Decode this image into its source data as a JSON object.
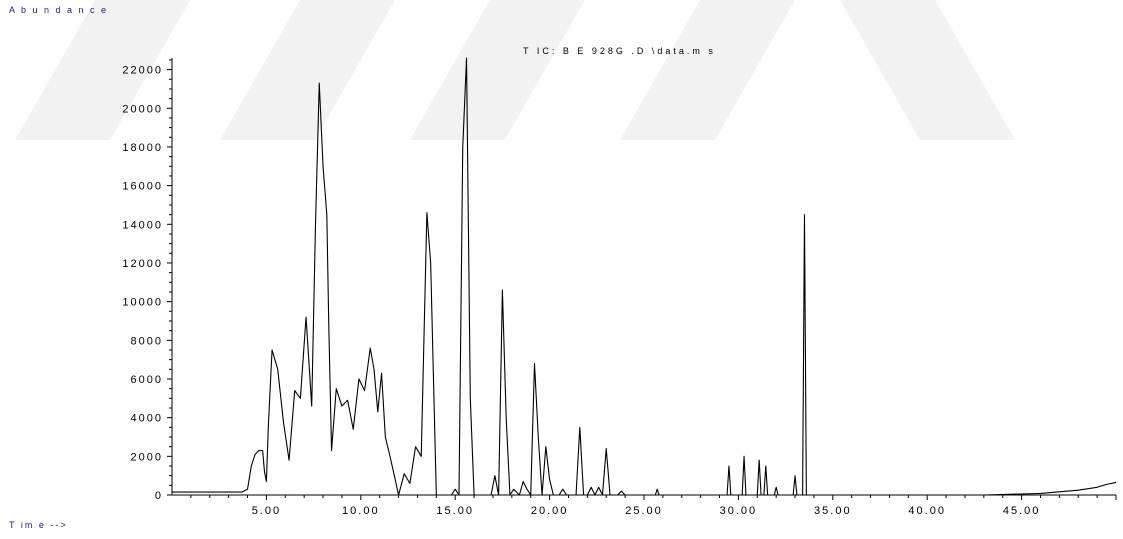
{
  "chart_data": {
    "type": "line",
    "title": "T IC: B E 928G .D \\data.m s",
    "ylabel": "A b u n d a n c e",
    "xlabel": "T im e -->",
    "xlim": [
      0,
      50
    ],
    "ylim": [
      0,
      22600
    ],
    "x_ticks": [
      5,
      10,
      15,
      20,
      25,
      30,
      35,
      40,
      45
    ],
    "x_tick_labels": [
      "5.00",
      "10.00",
      "15.00",
      "20.00",
      "25.00",
      "30.00",
      "35.00",
      "40.00",
      "45.00"
    ],
    "y_ticks": [
      0,
      2000,
      4000,
      6000,
      8000,
      10000,
      12000,
      14000,
      16000,
      18000,
      20000,
      22000
    ],
    "y_tick_labels": [
      "0",
      "2000",
      "4000",
      "6000",
      "8000",
      "10000",
      "12000",
      "14000",
      "16000",
      "18000",
      "20000",
      "22000"
    ],
    "grid": false,
    "line_color": "#000000",
    "series": [
      {
        "x": [
          0.0,
          3.7,
          4.0,
          4.2,
          4.4,
          4.6,
          4.8,
          4.9,
          5.0,
          5.1,
          5.3,
          5.6,
          5.9,
          6.2,
          6.5,
          6.8,
          7.1,
          7.4,
          7.6,
          7.8,
          8.0,
          8.2,
          8.3,
          8.45,
          8.7,
          9.0,
          9.3,
          9.6,
          9.9,
          10.2,
          10.5,
          10.7,
          10.9,
          11.1,
          11.3,
          11.5,
          11.8,
          12.0,
          12.3,
          12.6,
          12.9,
          13.2,
          13.5,
          13.7,
          13.9,
          14.0,
          14.2,
          14.8,
          15.0,
          15.2,
          15.4,
          15.6,
          15.8,
          16.0,
          16.5,
          16.9,
          17.1,
          17.3,
          17.5,
          17.7,
          17.9,
          18.1,
          18.4,
          18.6,
          18.8,
          19.0,
          19.2,
          19.4,
          19.6,
          19.8,
          20.0,
          20.2,
          20.5,
          20.7,
          20.9,
          21.2,
          21.4,
          21.6,
          21.8,
          22.0,
          22.2,
          22.4,
          22.6,
          22.8,
          23.0,
          23.2,
          23.6,
          23.8,
          24.0,
          25.6,
          25.7,
          25.8,
          29.4,
          29.5,
          29.6,
          30.2,
          30.3,
          30.4,
          31.0,
          31.1,
          31.2,
          31.35,
          31.45,
          31.55,
          31.9,
          32.0,
          32.1,
          32.9,
          33.0,
          33.1,
          33.4,
          33.5,
          33.6,
          43.0,
          46.0,
          48.0,
          49.0,
          49.5,
          50.0
        ],
        "y": [
          150,
          150,
          300,
          1500,
          2100,
          2300,
          2300,
          1200,
          700,
          3500,
          7500,
          6500,
          3800,
          1800,
          5400,
          5000,
          9200,
          4600,
          14000,
          21300,
          17000,
          14500,
          9000,
          2300,
          5500,
          4600,
          4900,
          3400,
          6000,
          5400,
          7600,
          6500,
          4300,
          6300,
          3000,
          2200,
          900,
          0,
          1100,
          600,
          2500,
          2000,
          14600,
          12000,
          4000,
          0,
          0,
          0,
          300,
          0,
          18000,
          22600,
          5000,
          0,
          0,
          0,
          1000,
          0,
          10600,
          4000,
          0,
          300,
          0,
          700,
          300,
          0,
          6800,
          3000,
          0,
          2500,
          800,
          0,
          0,
          300,
          0,
          0,
          0,
          3500,
          0,
          0,
          400,
          0,
          400,
          0,
          2400,
          0,
          0,
          200,
          0,
          0,
          300,
          0,
          0,
          1500,
          0,
          0,
          2000,
          0,
          0,
          1800,
          0,
          0,
          1500,
          0,
          0,
          400,
          0,
          0,
          1000,
          0,
          0,
          14500,
          0,
          0,
          80,
          250,
          400,
          550,
          650
        ]
      }
    ]
  }
}
